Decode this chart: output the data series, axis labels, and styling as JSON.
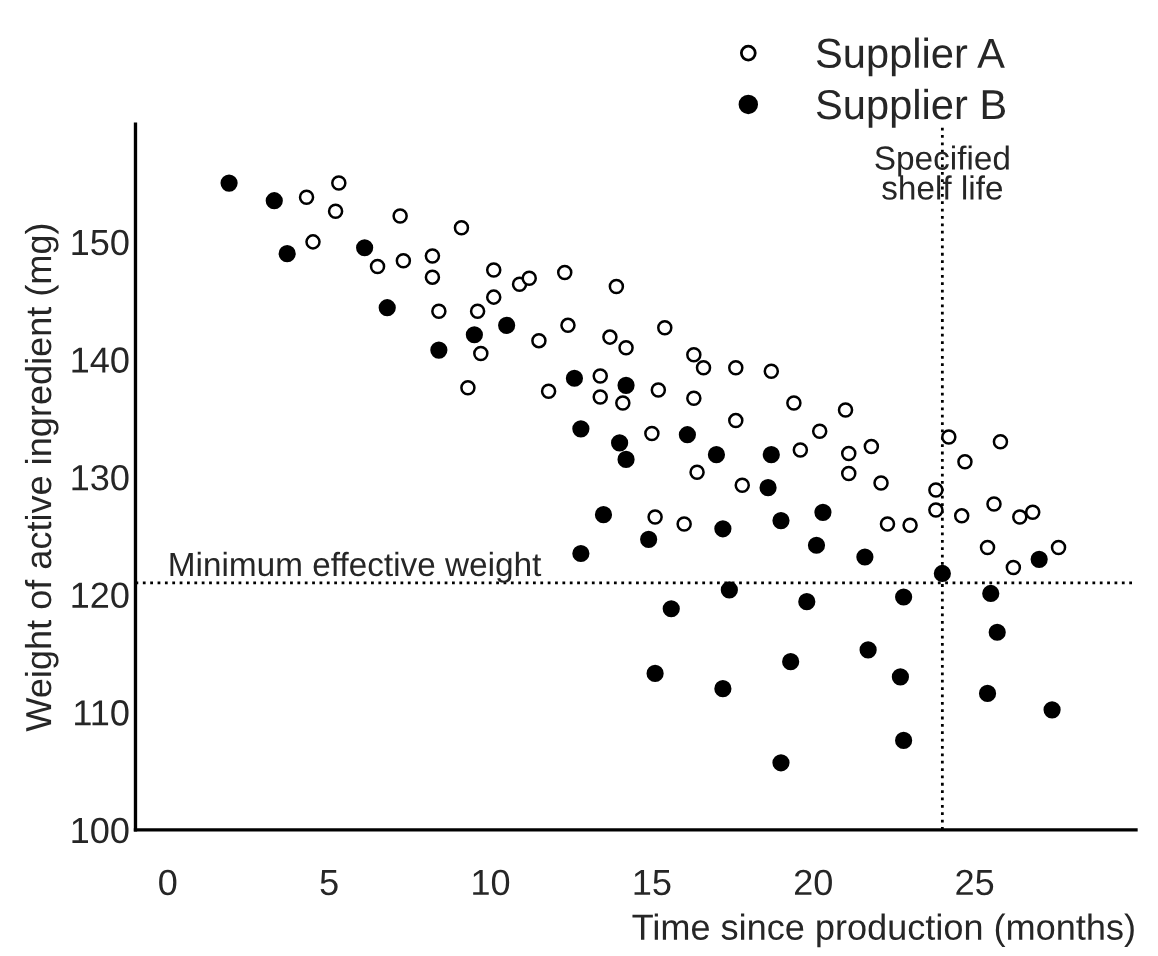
{
  "chart_data": {
    "type": "scatter",
    "xlabel": "Time since production (months)",
    "ylabel": "Weight of active ingredient (mg)",
    "xlim": [
      -1,
      30
    ],
    "xticks": [
      0,
      5,
      10,
      15,
      20,
      25
    ],
    "ylim": [
      100,
      160
    ],
    "yticks": [
      100,
      110,
      120,
      130,
      140,
      150
    ],
    "grid": false,
    "legend": "top right",
    "marker": "circle",
    "ref_lines": [
      {
        "axis": "y",
        "value": 121,
        "label": "Minimum effective weight",
        "line_style": "dotted",
        "color": "#000000"
      },
      {
        "axis": "x",
        "value": 24,
        "label": "Specified\nshelf life",
        "line_style": "dotted",
        "color": "#000000"
      }
    ],
    "series": [
      {
        "name": "Supplier A",
        "color": "#000000",
        "x": [
          4.3,
          5.3,
          5.2,
          4.5,
          7.2,
          9.1,
          6.5,
          7.3,
          8.2,
          8.2,
          8.4,
          10.1,
          10.9,
          11.2,
          10.1,
          9.6,
          9.7,
          9.3,
          12.3,
          12.4,
          11.5,
          11.8,
          13.9,
          13.7,
          14.2,
          13.4,
          13.4,
          14.1,
          15.4,
          16.3,
          16.6,
          17.6,
          18.7,
          15.2,
          16.3,
          19.4,
          21.0,
          17.6,
          15.0,
          20.2,
          19.6,
          21.1,
          21.8,
          24.2,
          25.8,
          16.4,
          21.1,
          17.8,
          22.1,
          24.7,
          23.8,
          23.8,
          15.1,
          16.0,
          22.3,
          23.0,
          24.6,
          25.6,
          26.4,
          26.8,
          25.4,
          26.2,
          27.6
        ],
        "values": [
          153.8,
          155.0,
          152.6,
          150.0,
          152.2,
          151.2,
          147.9,
          148.4,
          148.8,
          147.0,
          144.1,
          147.6,
          146.4,
          146.9,
          145.3,
          144.1,
          140.5,
          137.6,
          147.4,
          142.9,
          141.6,
          137.3,
          146.2,
          141.9,
          141.0,
          138.6,
          136.8,
          136.3,
          142.7,
          140.4,
          139.3,
          139.3,
          139.0,
          137.4,
          136.7,
          136.3,
          135.7,
          134.8,
          133.7,
          133.9,
          132.3,
          132.0,
          132.6,
          133.4,
          133.0,
          130.4,
          130.3,
          129.3,
          129.5,
          131.3,
          128.9,
          127.2,
          126.6,
          126.0,
          126.0,
          125.9,
          126.7,
          127.7,
          126.6,
          127.0,
          124.0,
          122.3,
          124.0
        ]
      },
      {
        "name": "Supplier B",
        "color": "#000000",
        "x": [
          1.9,
          3.3,
          3.7,
          6.1,
          6.8,
          8.4,
          9.5,
          10.5,
          12.6,
          14.2,
          12.8,
          14.0,
          14.2,
          13.5,
          12.8,
          16.1,
          17.0,
          18.7,
          18.6,
          14.9,
          17.2,
          19.0,
          20.3,
          20.1,
          21.6,
          24.0,
          27.0,
          17.4,
          19.8,
          22.8,
          25.5,
          15.6,
          25.7,
          21.7,
          19.3,
          15.1,
          17.2,
          22.7,
          25.4,
          27.4,
          22.8,
          19.0
        ],
        "values": [
          155.0,
          153.5,
          149.0,
          149.5,
          144.4,
          140.8,
          142.1,
          142.9,
          138.4,
          137.8,
          134.1,
          132.9,
          131.5,
          126.8,
          123.5,
          133.6,
          131.9,
          131.9,
          129.1,
          124.7,
          125.6,
          126.3,
          127.0,
          124.2,
          123.2,
          121.8,
          123.0,
          120.4,
          119.4,
          119.8,
          120.1,
          118.8,
          116.8,
          115.3,
          114.3,
          113.3,
          112.0,
          113.0,
          111.6,
          110.2,
          107.6,
          105.7
        ]
      }
    ]
  }
}
